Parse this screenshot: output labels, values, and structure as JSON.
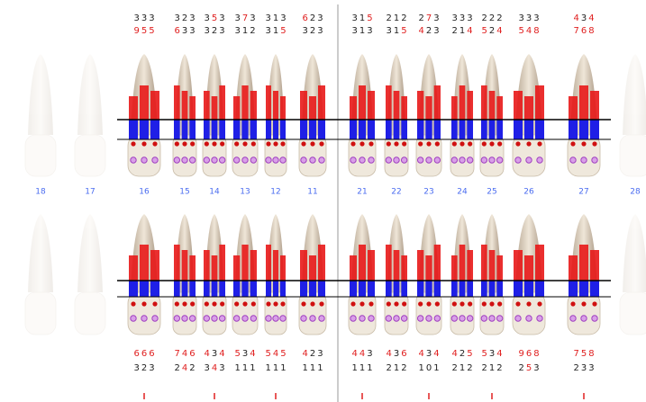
{
  "upper": {
    "row1": [
      "333",
      "323",
      "353",
      "373",
      "313",
      "623",
      "315",
      "212",
      "273",
      "333",
      "222",
      "333",
      "434"
    ],
    "row2": [
      "955",
      "633",
      "323",
      "312",
      "315",
      "323",
      "313",
      "315",
      "423",
      "214",
      "524",
      "548",
      "768"
    ]
  },
  "tooth_numbers": [
    "18",
    "17",
    "16",
    "15",
    "14",
    "13",
    "12",
    "11",
    "21",
    "22",
    "23",
    "24",
    "25",
    "26",
    "27",
    "28"
  ],
  "lower": {
    "row1": [
      "666",
      "746",
      "434",
      "534",
      "545",
      "423",
      "443",
      "436",
      "434",
      "425",
      "534",
      "968",
      "758"
    ],
    "row2": [
      "323",
      "242",
      "343",
      "111",
      "111",
      "111",
      "111",
      "212",
      "101",
      "212",
      "212",
      "253",
      "233"
    ]
  }
}
